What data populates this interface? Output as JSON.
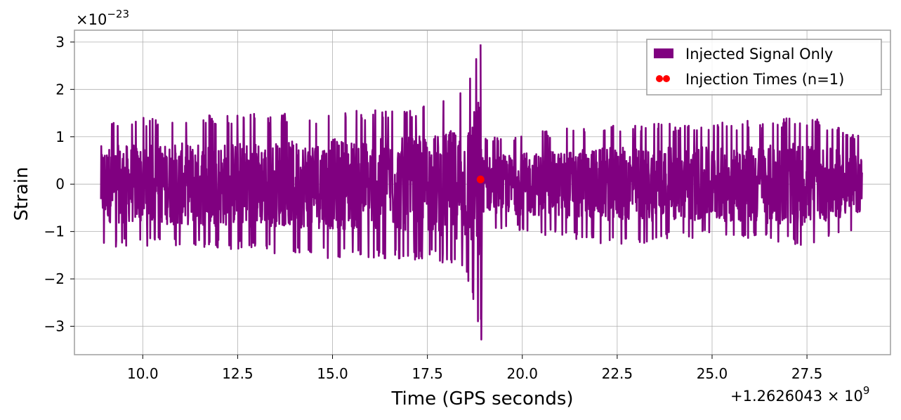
{
  "chart_data": {
    "type": "line",
    "xlabel": "Time (GPS seconds)",
    "ylabel": "Strain",
    "x_offset_label": "+1.2626043 × 10",
    "x_offset_exponent": "9",
    "y_multiplier_label": "×10",
    "y_multiplier_exponent": "−23",
    "xlim": [
      8.2,
      29.7
    ],
    "ylim": [
      -3.6,
      3.25
    ],
    "x_ticks": [
      10.0,
      12.5,
      15.0,
      17.5,
      20.0,
      22.5,
      25.0,
      27.5
    ],
    "x_tick_labels": [
      "10.0",
      "12.5",
      "15.0",
      "17.5",
      "20.0",
      "22.5",
      "25.0",
      "27.5"
    ],
    "y_ticks": [
      -3,
      -2,
      -1,
      0,
      1,
      2,
      3
    ],
    "y_tick_labels": [
      "−3",
      "−2",
      "−1",
      "0",
      "1",
      "2",
      "3"
    ],
    "grid": true,
    "legend_position": "top-right",
    "series": [
      {
        "name": "Injected Signal Only",
        "kind": "line",
        "color": "#800080",
        "x_range": [
          8.9,
          28.95
        ],
        "envelope": {
          "pre_merger_max": [
            [
              8.9,
              1.35
            ],
            [
              10.0,
              1.4
            ],
            [
              12.5,
              1.5
            ],
            [
              15.0,
              1.5
            ],
            [
              17.5,
              1.7
            ],
            [
              18.5,
              2.0
            ],
            [
              18.9,
              2.95
            ]
          ],
          "pre_merger_min": [
            [
              8.9,
              -1.35
            ],
            [
              10.0,
              -1.3
            ],
            [
              12.5,
              -1.4
            ],
            [
              15.0,
              -1.6
            ],
            [
              17.5,
              -1.6
            ],
            [
              18.5,
              -1.8
            ],
            [
              18.9,
              -3.28
            ]
          ],
          "post_merger_max": [
            [
              19.0,
              1.0
            ],
            [
              22.5,
              1.3
            ],
            [
              25.0,
              1.3
            ],
            [
              27.5,
              1.45
            ],
            [
              28.95,
              1.0
            ]
          ],
          "post_merger_min": [
            [
              19.0,
              -0.9
            ],
            [
              22.5,
              -1.3
            ],
            [
              25.0,
              -1.1
            ],
            [
              27.5,
              -1.3
            ],
            [
              28.95,
              -0.9
            ]
          ]
        }
      },
      {
        "name": "Injection Times (n=1)",
        "kind": "scatter",
        "color": "#ff0000",
        "x": [
          18.9
        ],
        "y": [
          0.1
        ]
      }
    ]
  }
}
